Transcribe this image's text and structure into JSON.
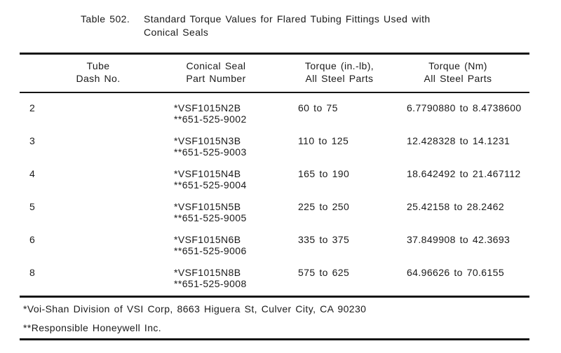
{
  "page": {
    "title_label": "Table 502.",
    "title_line1": "Standard Torque Values for Flared Tubing Fittings Used with",
    "title_line2": "Conical Seals"
  },
  "table": {
    "headers": [
      {
        "line1": "Tube",
        "line2": "Dash No."
      },
      {
        "line1": "Conical Seal",
        "line2": "Part Number"
      },
      {
        "line1": "Torque (in.-lb),",
        "line2": "All Steel Parts"
      },
      {
        "line1": "Torque (Nm)",
        "line2": "All Steel Parts"
      }
    ],
    "rows": [
      {
        "dash_no": "2",
        "part_number_1": "*VSF1015N2B",
        "part_number_2": "**651-525-9002",
        "torque_inlb": "60 to 75",
        "torque_nm": "6.7790880 to 8.4738600"
      },
      {
        "dash_no": "3",
        "part_number_1": "*VSF1015N3B",
        "part_number_2": "**651-525-9003",
        "torque_inlb": "110 to 125",
        "torque_nm": "12.428328 to 14.1231"
      },
      {
        "dash_no": "4",
        "part_number_1": "*VSF1015N4B",
        "part_number_2": "**651-525-9004",
        "torque_inlb": "165 to 190",
        "torque_nm": "18.642492 to 21.467112"
      },
      {
        "dash_no": "5",
        "part_number_1": "*VSF1015N5B",
        "part_number_2": "**651-525-9005",
        "torque_inlb": "225 to 250",
        "torque_nm": "25.42158 to 28.2462"
      },
      {
        "dash_no": "6",
        "part_number_1": "*VSF1015N6B",
        "part_number_2": "**651-525-9006",
        "torque_inlb": "335 to 375",
        "torque_nm": "37.849908 to 42.3693"
      },
      {
        "dash_no": "8",
        "part_number_1": "*VSF1015N8B",
        "part_number_2": "**651-525-9008",
        "torque_inlb": "575 to 625",
        "torque_nm": "64.96626 to 70.6155"
      }
    ],
    "footnotes": [
      "*Voi-Shan Division of VSI Corp, 8663 Higuera St, Culver City, CA 90230",
      "**Responsible Honeywell Inc."
    ]
  },
  "colors": {
    "background": "#ffffff",
    "text": "#1a1a1a",
    "rule": "#151515"
  }
}
